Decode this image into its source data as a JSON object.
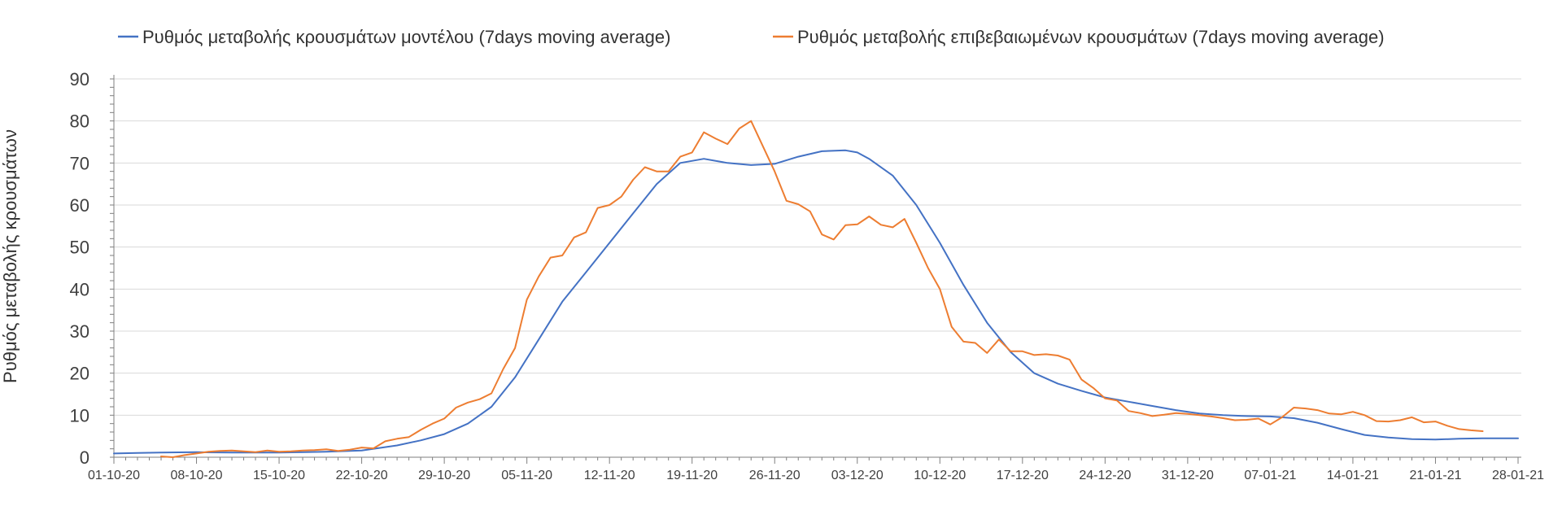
{
  "chart_data": {
    "type": "line",
    "title": "",
    "xlabel": "",
    "ylabel": "Ρυθμός μεταβολής κρουσμάτων",
    "ylim": [
      0,
      90
    ],
    "yticks": [
      0,
      10,
      20,
      30,
      40,
      50,
      60,
      70,
      80,
      90
    ],
    "grid": true,
    "legend": "top",
    "start_date": "01-10-20",
    "x_day_range": [
      0,
      119
    ],
    "xticks": [
      {
        "day": 0,
        "label": "01-10-20"
      },
      {
        "day": 7,
        "label": "08-10-20"
      },
      {
        "day": 14,
        "label": "15-10-20"
      },
      {
        "day": 21,
        "label": "22-10-20"
      },
      {
        "day": 28,
        "label": "29-10-20"
      },
      {
        "day": 35,
        "label": "05-11-20"
      },
      {
        "day": 42,
        "label": "12-11-20"
      },
      {
        "day": 49,
        "label": "19-11-20"
      },
      {
        "day": 56,
        "label": "26-11-20"
      },
      {
        "day": 63,
        "label": "03-12-20"
      },
      {
        "day": 70,
        "label": "10-12-20"
      },
      {
        "day": 77,
        "label": "17-12-20"
      },
      {
        "day": 84,
        "label": "24-12-20"
      },
      {
        "day": 91,
        "label": "31-12-20"
      },
      {
        "day": 98,
        "label": "07-01-21"
      },
      {
        "day": 105,
        "label": "14-01-21"
      },
      {
        "day": 112,
        "label": "21-01-21"
      },
      {
        "day": 119,
        "label": "28-01-21"
      }
    ],
    "series": [
      {
        "name": "Ρυθμός μεταβολής κρουσμάτων μοντέλου (7days moving average)",
        "color": "#4472C4",
        "points": [
          [
            0,
            0.9
          ],
          [
            2,
            1.0
          ],
          [
            4,
            1.1
          ],
          [
            7,
            1.2
          ],
          [
            10,
            1.1
          ],
          [
            14,
            1.1
          ],
          [
            18,
            1.3
          ],
          [
            21,
            1.6
          ],
          [
            24,
            2.8
          ],
          [
            26,
            4.0
          ],
          [
            28,
            5.5
          ],
          [
            30,
            8.0
          ],
          [
            32,
            12.0
          ],
          [
            34,
            19.0
          ],
          [
            36,
            28.0
          ],
          [
            38,
            37.0
          ],
          [
            40,
            44.0
          ],
          [
            42,
            51.0
          ],
          [
            44,
            58.0
          ],
          [
            46,
            65.0
          ],
          [
            48,
            70.0
          ],
          [
            50,
            71.0
          ],
          [
            52,
            70.0
          ],
          [
            54,
            69.5
          ],
          [
            56,
            69.8
          ],
          [
            58,
            71.5
          ],
          [
            60,
            72.8
          ],
          [
            62,
            73.0
          ],
          [
            63,
            72.5
          ],
          [
            64,
            71.0
          ],
          [
            66,
            67.0
          ],
          [
            68,
            60.0
          ],
          [
            70,
            51.0
          ],
          [
            72,
            41.0
          ],
          [
            74,
            32.0
          ],
          [
            76,
            25.0
          ],
          [
            78,
            20.0
          ],
          [
            80,
            17.5
          ],
          [
            82,
            15.8
          ],
          [
            84,
            14.2
          ],
          [
            86,
            13.2
          ],
          [
            88,
            12.2
          ],
          [
            90,
            11.2
          ],
          [
            92,
            10.4
          ],
          [
            94,
            10.0
          ],
          [
            96,
            9.8
          ],
          [
            98,
            9.7
          ],
          [
            100,
            9.3
          ],
          [
            102,
            8.2
          ],
          [
            104,
            6.7
          ],
          [
            106,
            5.3
          ],
          [
            108,
            4.7
          ],
          [
            110,
            4.3
          ],
          [
            112,
            4.2
          ],
          [
            114,
            4.4
          ],
          [
            116,
            4.5
          ],
          [
            119,
            4.5
          ]
        ]
      },
      {
        "name": "Ρυθμός μεταβολής επιβεβαιωμένων κρουσμάτων (7days moving average)",
        "color": "#ED7D31",
        "points": [
          [
            4,
            0.2
          ],
          [
            5,
            0.0
          ],
          [
            6,
            0.5
          ],
          [
            7,
            0.9
          ],
          [
            8,
            1.3
          ],
          [
            9,
            1.5
          ],
          [
            10,
            1.6
          ],
          [
            11,
            1.4
          ],
          [
            12,
            1.2
          ],
          [
            13,
            1.6
          ],
          [
            14,
            1.3
          ],
          [
            15,
            1.4
          ],
          [
            16,
            1.6
          ],
          [
            17,
            1.7
          ],
          [
            18,
            1.9
          ],
          [
            19,
            1.5
          ],
          [
            20,
            1.8
          ],
          [
            21,
            2.3
          ],
          [
            22,
            2.1
          ],
          [
            23,
            3.8
          ],
          [
            24,
            4.4
          ],
          [
            25,
            4.8
          ],
          [
            26,
            6.5
          ],
          [
            27,
            8.0
          ],
          [
            28,
            9.2
          ],
          [
            29,
            11.8
          ],
          [
            30,
            13.0
          ],
          [
            31,
            13.8
          ],
          [
            32,
            15.2
          ],
          [
            33,
            21.0
          ],
          [
            34,
            26.0
          ],
          [
            35,
            37.5
          ],
          [
            36,
            43.0
          ],
          [
            37,
            47.5
          ],
          [
            38,
            48.0
          ],
          [
            39,
            52.3
          ],
          [
            40,
            53.5
          ],
          [
            41,
            59.3
          ],
          [
            42,
            60.0
          ],
          [
            43,
            62.0
          ],
          [
            44,
            66.0
          ],
          [
            45,
            69.0
          ],
          [
            46,
            68.0
          ],
          [
            47,
            68.0
          ],
          [
            48,
            71.5
          ],
          [
            49,
            72.5
          ],
          [
            50,
            77.3
          ],
          [
            51,
            75.8
          ],
          [
            52,
            74.5
          ],
          [
            53,
            78.2
          ],
          [
            54,
            80.0
          ],
          [
            55,
            74.0
          ],
          [
            56,
            68.0
          ],
          [
            57,
            61.0
          ],
          [
            58,
            60.2
          ],
          [
            59,
            58.5
          ],
          [
            60,
            53.0
          ],
          [
            61,
            51.8
          ],
          [
            62,
            55.2
          ],
          [
            63,
            55.4
          ],
          [
            64,
            57.3
          ],
          [
            65,
            55.3
          ],
          [
            66,
            54.7
          ],
          [
            67,
            56.7
          ],
          [
            68,
            51.0
          ],
          [
            69,
            45.0
          ],
          [
            70,
            40.0
          ],
          [
            71,
            31.0
          ],
          [
            72,
            27.5
          ],
          [
            73,
            27.2
          ],
          [
            74,
            24.8
          ],
          [
            75,
            28.0
          ],
          [
            76,
            25.2
          ],
          [
            77,
            25.2
          ],
          [
            78,
            24.3
          ],
          [
            79,
            24.5
          ],
          [
            80,
            24.2
          ],
          [
            81,
            23.2
          ],
          [
            82,
            18.5
          ],
          [
            83,
            16.5
          ],
          [
            84,
            14.0
          ],
          [
            85,
            13.5
          ],
          [
            86,
            11.0
          ],
          [
            87,
            10.5
          ],
          [
            88,
            9.8
          ],
          [
            89,
            10.1
          ],
          [
            90,
            10.5
          ],
          [
            91,
            10.3
          ],
          [
            92,
            10.0
          ],
          [
            93,
            9.7
          ],
          [
            94,
            9.3
          ],
          [
            95,
            8.8
          ],
          [
            96,
            8.9
          ],
          [
            97,
            9.2
          ],
          [
            98,
            7.8
          ],
          [
            99,
            9.5
          ],
          [
            100,
            11.8
          ],
          [
            101,
            11.6
          ],
          [
            102,
            11.2
          ],
          [
            103,
            10.4
          ],
          [
            104,
            10.2
          ],
          [
            105,
            10.8
          ],
          [
            106,
            10.0
          ],
          [
            107,
            8.6
          ],
          [
            108,
            8.5
          ],
          [
            109,
            8.8
          ],
          [
            110,
            9.5
          ],
          [
            111,
            8.3
          ],
          [
            112,
            8.5
          ],
          [
            113,
            7.5
          ],
          [
            114,
            6.7
          ],
          [
            115,
            6.4
          ],
          [
            116,
            6.2
          ]
        ]
      }
    ]
  }
}
